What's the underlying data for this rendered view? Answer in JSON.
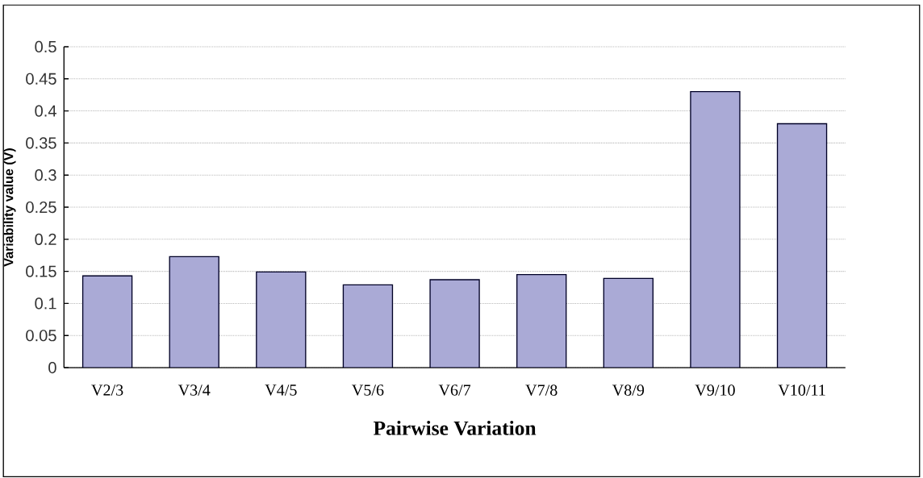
{
  "chart_data": {
    "type": "bar",
    "xlabel": "Pairwise Variation",
    "ylabel": "Variability value (V)",
    "categories": [
      "V2/3",
      "V3/4",
      "V4/5",
      "V5/6",
      "V6/7",
      "V7/8",
      "V8/9",
      "V9/10",
      "V10/11"
    ],
    "values": [
      0.143,
      0.173,
      0.149,
      0.129,
      0.137,
      0.145,
      0.139,
      0.43,
      0.38
    ],
    "color": "#aaaad6",
    "ylim": [
      0,
      0.5
    ],
    "yticks": [
      0,
      0.05,
      0.1,
      0.15,
      0.2,
      0.25,
      0.3,
      0.35,
      0.4,
      0.45,
      0.5
    ],
    "grid": "y"
  }
}
